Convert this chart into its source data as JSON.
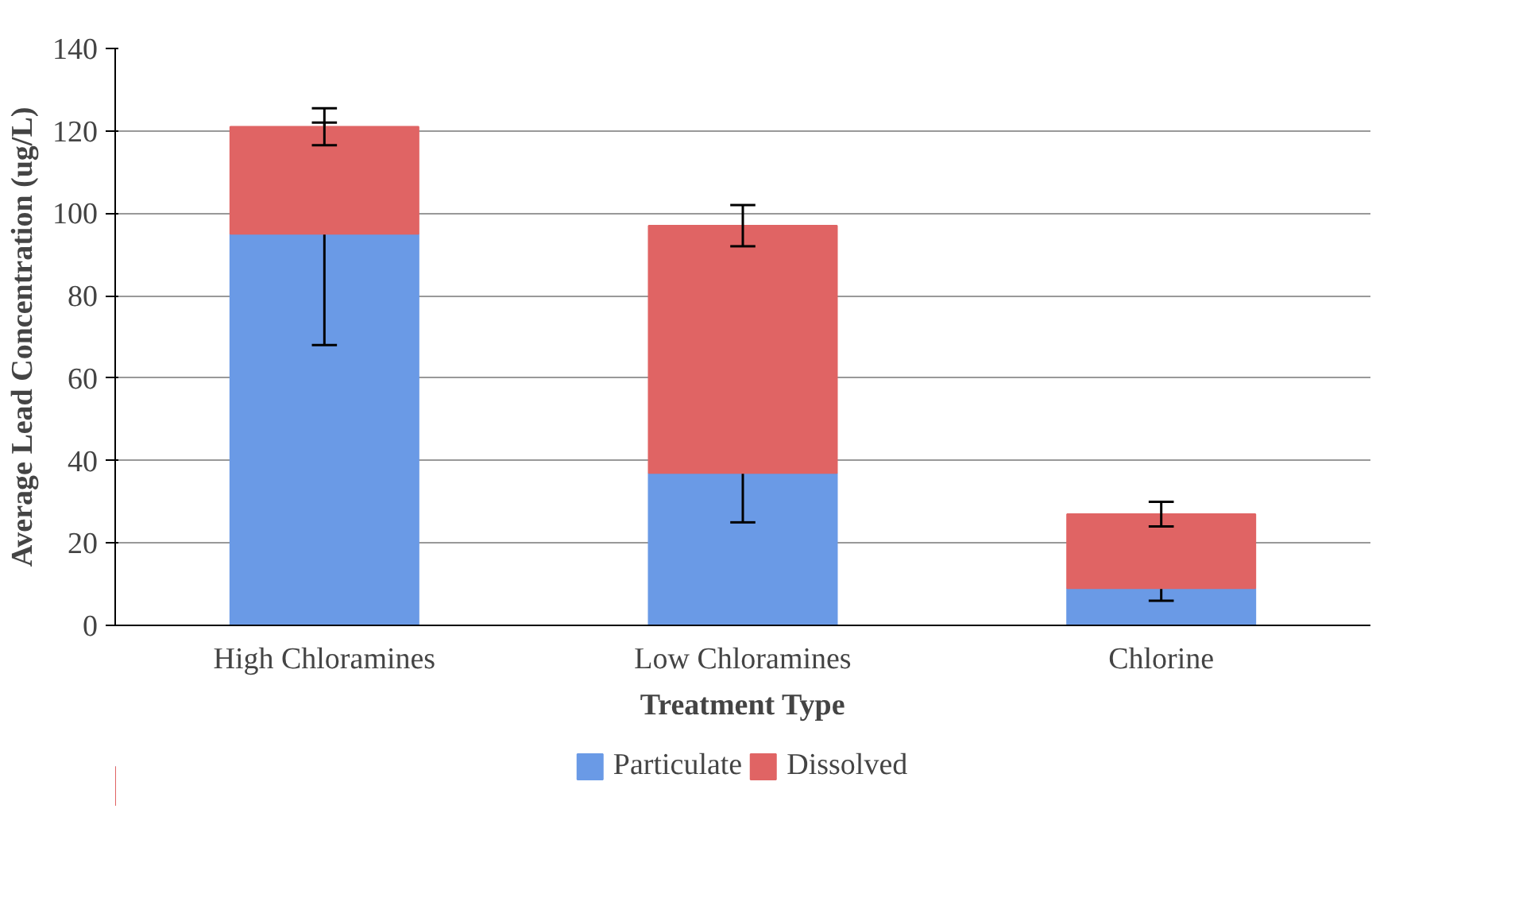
{
  "chart_data": {
    "type": "bar",
    "stacked": true,
    "xlabel": "Treatment Type",
    "ylabel": "Average Lead Concentration (ug/L)",
    "categories": [
      "High Chloramines",
      "Low Chloramines",
      "Chlorine"
    ],
    "series": [
      {
        "name": "Particulate",
        "color": "#6a9ae6",
        "values": [
          95,
          37,
          9
        ],
        "errors": [
          27,
          12,
          3
        ]
      },
      {
        "name": "Dissolved",
        "color": "#e06464",
        "values": [
          26,
          60,
          18
        ],
        "errors": [
          4.5,
          5,
          3
        ]
      }
    ],
    "ylim": [
      0,
      140
    ],
    "yticks": [
      0,
      20,
      40,
      60,
      80,
      100,
      120,
      140
    ],
    "grid": "y",
    "legend": "bottom"
  }
}
